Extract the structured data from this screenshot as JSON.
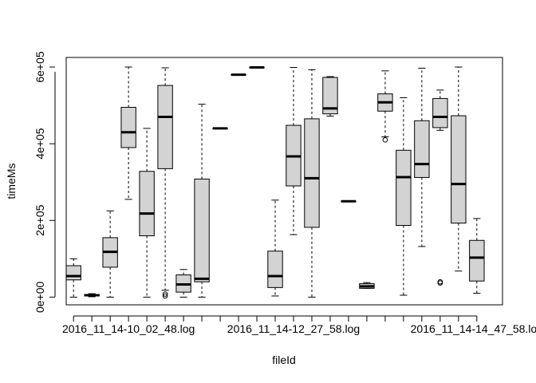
{
  "chart_data": {
    "type": "box",
    "xlabel": "fileId",
    "ylabel": "timeMs",
    "ylim": [
      -20000,
      625000
    ],
    "y_ticks": [
      {
        "value": 0,
        "label": "0e+00"
      },
      {
        "value": 200000,
        "label": "2e+05"
      },
      {
        "value": 400000,
        "label": "4e+05"
      },
      {
        "value": 600000,
        "label": "6e+05"
      }
    ],
    "x_tick_labels": [
      {
        "index": 4,
        "label": "2016_11_14-10_02_48.log"
      },
      {
        "index": 13,
        "label": "2016_11_14-12_27_58.log"
      },
      {
        "index": 23,
        "label": "2016_11_14-14_47_58.log"
      }
    ],
    "colors": {
      "box_fill": "#d3d3d3",
      "stroke": "#000000"
    },
    "boxes": [
      {
        "index": 1,
        "whisker_low": 0,
        "q1": 45000,
        "median": 55000,
        "q3": 82000,
        "whisker_high": 100000,
        "outliers": []
      },
      {
        "index": 2,
        "whisker_low": 1000,
        "q1": 3000,
        "median": 5000,
        "q3": 7000,
        "whisker_high": 9000,
        "outliers": []
      },
      {
        "index": 3,
        "whisker_low": 0,
        "q1": 78000,
        "median": 118000,
        "q3": 155000,
        "whisker_high": 225000,
        "outliers": []
      },
      {
        "index": 4,
        "whisker_low": 255000,
        "q1": 390000,
        "median": 430000,
        "q3": 495000,
        "whisker_high": 600000,
        "outliers": []
      },
      {
        "index": 5,
        "whisker_low": 0,
        "q1": 160000,
        "median": 218000,
        "q3": 328000,
        "whisker_high": 440000,
        "outliers": []
      },
      {
        "index": 6,
        "whisker_low": 18000,
        "q1": 335000,
        "median": 470000,
        "q3": 552000,
        "whisker_high": 598000,
        "outliers": [
          3000,
          8000
        ]
      },
      {
        "index": 7,
        "whisker_low": 0,
        "q1": 13000,
        "median": 33000,
        "q3": 58000,
        "whisker_high": 72000,
        "outliers": []
      },
      {
        "index": 8,
        "whisker_low": 0,
        "q1": 40000,
        "median": 48000,
        "q3": 308000,
        "whisker_high": 503000,
        "outliers": []
      },
      {
        "index": 9,
        "whisker_low": 440000,
        "q1": 440000,
        "median": 440000,
        "q3": 440000,
        "whisker_high": 440000,
        "outliers": []
      },
      {
        "index": 10,
        "whisker_low": 580000,
        "q1": 580000,
        "median": 580000,
        "q3": 580000,
        "whisker_high": 580000,
        "outliers": []
      },
      {
        "index": 11,
        "whisker_low": 599000,
        "q1": 599000,
        "median": 599000,
        "q3": 599000,
        "whisker_high": 599000,
        "outliers": []
      },
      {
        "index": 12,
        "whisker_low": 3000,
        "q1": 25000,
        "median": 55000,
        "q3": 120000,
        "whisker_high": 253000,
        "outliers": []
      },
      {
        "index": 13,
        "whisker_low": 163000,
        "q1": 290000,
        "median": 367000,
        "q3": 448000,
        "whisker_high": 599000,
        "outliers": []
      },
      {
        "index": 14,
        "whisker_low": 0,
        "q1": 182000,
        "median": 310000,
        "q3": 465000,
        "whisker_high": 593000,
        "outliers": []
      },
      {
        "index": 15,
        "whisker_low": 472000,
        "q1": 478000,
        "median": 492000,
        "q3": 573000,
        "whisker_high": 575000,
        "outliers": []
      },
      {
        "index": 16,
        "whisker_low": 250000,
        "q1": 250000,
        "median": 250000,
        "q3": 250000,
        "whisker_high": 250000,
        "outliers": []
      },
      {
        "index": 17,
        "whisker_low": 23000,
        "q1": 23000,
        "median": 28000,
        "q3": 35000,
        "whisker_high": 38000,
        "outliers": []
      },
      {
        "index": 18,
        "whisker_low": 418000,
        "q1": 485000,
        "median": 508000,
        "q3": 530000,
        "whisker_high": 590000,
        "outliers": [
          410000
        ]
      },
      {
        "index": 19,
        "whisker_low": 5000,
        "q1": 187000,
        "median": 313000,
        "q3": 383000,
        "whisker_high": 520000,
        "outliers": []
      },
      {
        "index": 20,
        "whisker_low": 132000,
        "q1": 312000,
        "median": 347000,
        "q3": 460000,
        "whisker_high": 597000,
        "outliers": []
      },
      {
        "index": 21,
        "whisker_low": 435000,
        "q1": 442000,
        "median": 470000,
        "q3": 518000,
        "whisker_high": 540000,
        "outliers": [
          37000,
          40000
        ]
      },
      {
        "index": 22,
        "whisker_low": 68000,
        "q1": 193000,
        "median": 295000,
        "q3": 473000,
        "whisker_high": 600000,
        "outliers": []
      },
      {
        "index": 23,
        "whisker_low": 10000,
        "q1": 42000,
        "median": 103000,
        "q3": 148000,
        "whisker_high": 205000,
        "outliers": []
      }
    ]
  }
}
